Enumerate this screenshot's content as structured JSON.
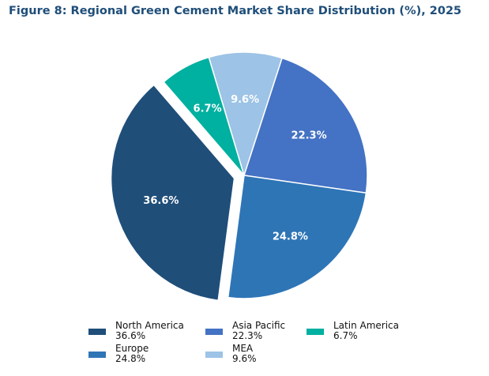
{
  "chart_data": {
    "type": "pie",
    "title": "Figure 8: Regional Green Cement Market Share Distribution (%), 2025",
    "unit": "%",
    "slices": [
      {
        "label": "North America",
        "value": 36.6,
        "value_label": "36.6%",
        "color": "#1f4e79",
        "exploded": true
      },
      {
        "label": "Latin America",
        "value": 6.7,
        "value_label": "6.7%",
        "color": "#00b0a0",
        "exploded": false
      },
      {
        "label": "MEA",
        "value": 9.6,
        "value_label": "9.6%",
        "color": "#9dc3e6",
        "exploded": false
      },
      {
        "label": "Asia Pacific",
        "value": 22.3,
        "value_label": "22.3%",
        "color": "#4472c4",
        "exploded": false
      },
      {
        "label": "Europe",
        "value": 24.8,
        "value_label": "24.8%",
        "color": "#2e75b6",
        "exploded": false
      }
    ],
    "legend": {
      "position": "bottom",
      "items": [
        {
          "label": "North America",
          "value_label": "36.6%",
          "color": "#1f4e79"
        },
        {
          "label": "Asia Pacific",
          "value_label": "22.3%",
          "color": "#4472c4"
        },
        {
          "label": "Latin America",
          "value_label": "6.7%",
          "color": "#00b0a0"
        },
        {
          "label": "Europe",
          "value_label": "24.8%",
          "color": "#2e75b6"
        },
        {
          "label": "MEA",
          "value_label": "9.6%",
          "color": "#9dc3e6"
        }
      ]
    }
  }
}
